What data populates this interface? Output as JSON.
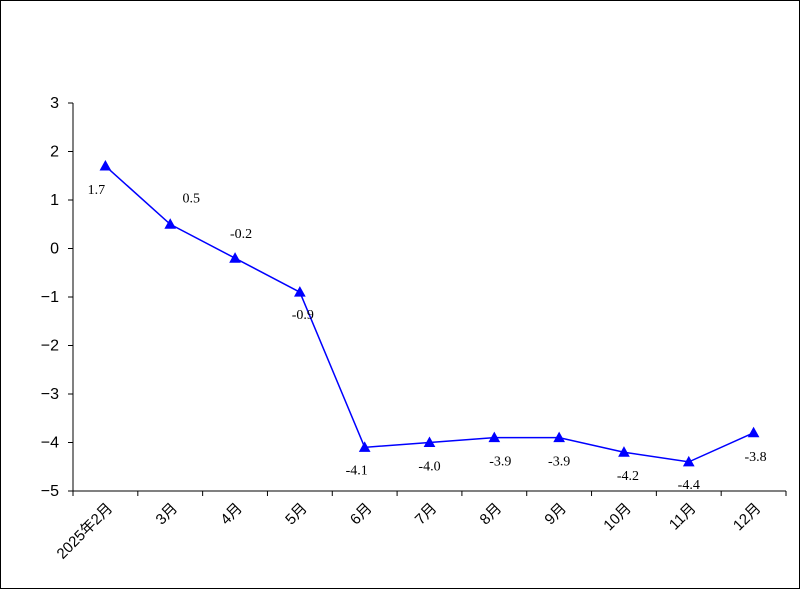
{
  "chart_data": {
    "type": "line",
    "categories": [
      "2025年2月",
      "3月",
      "4月",
      "5月",
      "6月",
      "7月",
      "8月",
      "9月",
      "10月",
      "11月",
      "12月"
    ],
    "series": [
      {
        "values": [
          1.7,
          0.5,
          -0.2,
          -0.9,
          -4.1,
          -4.0,
          -3.9,
          -3.9,
          -4.2,
          -4.4,
          -3.8
        ],
        "data_labels": [
          "1.7",
          "0.5",
          "-0.2",
          "-0.9",
          "-4.1",
          "-4.0",
          "-3.9",
          "-3.9",
          "-4.2",
          "-4.4",
          "-3.8"
        ],
        "color": "#0000FF",
        "marker": "triangle"
      }
    ],
    "ylim": [
      -5,
      3
    ],
    "yticks": [
      "3",
      "2",
      "1",
      "0",
      "-1",
      "-2",
      "-3",
      "-4",
      "-5"
    ],
    "grid": false,
    "legend": "none",
    "title": "",
    "xlabel": "",
    "ylabel": ""
  }
}
